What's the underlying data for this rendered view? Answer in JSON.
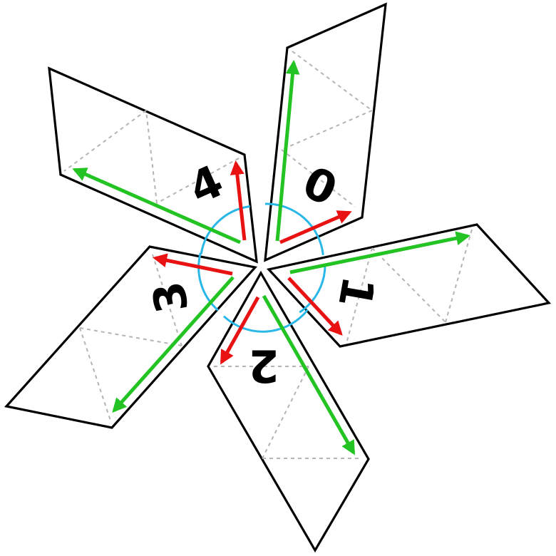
{
  "diagram": {
    "type": "five rotated rhombus tiles around a common center",
    "colors": {
      "outline": "#000000",
      "guide": "#b4b4b4",
      "long_vector": "#22c322",
      "short_vector": "#e81212",
      "angle_arc": "#29b7e8",
      "label": "#000000"
    },
    "tiles": [
      {
        "id": "tile-0",
        "label": "0"
      },
      {
        "id": "tile-1",
        "label": "1"
      },
      {
        "id": "tile-2",
        "label": "2"
      },
      {
        "id": "tile-3",
        "label": "3"
      },
      {
        "id": "tile-4",
        "label": "4"
      }
    ]
  }
}
